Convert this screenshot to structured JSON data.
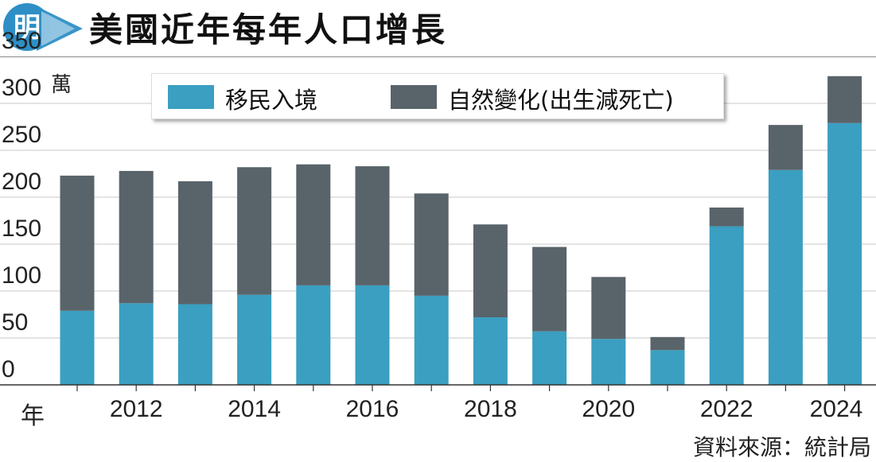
{
  "title": "美國近年每年人口增長",
  "badge": {
    "text": "明"
  },
  "source": "資料來源：統計局",
  "colors": {
    "immigration": "#3a9fc1",
    "natural": "#59646a",
    "badge": "#2e8fc6",
    "grid": "#c9c9c9"
  },
  "chart_data": {
    "type": "bar",
    "stacked": true,
    "ylabel": "萬",
    "xlabel": "年",
    "ylim": [
      0,
      350
    ],
    "yticks": [
      0,
      50,
      100,
      150,
      200,
      250,
      300,
      350
    ],
    "categories": [
      2011,
      2012,
      2013,
      2014,
      2015,
      2016,
      2017,
      2018,
      2019,
      2020,
      2021,
      2022,
      2023,
      2024
    ],
    "xtick_labels": [
      "2012",
      "2014",
      "2016",
      "2018",
      "2020",
      "2022",
      "2024"
    ],
    "series": [
      {
        "name": "移民入境",
        "values": [
          79,
          87,
          86,
          96,
          106,
          106,
          95,
          72,
          57,
          49,
          37,
          169,
          229,
          279
        ]
      },
      {
        "name": "自然變化(出生減死亡)",
        "values": [
          144,
          141,
          131,
          136,
          129,
          127,
          109,
          99,
          90,
          66,
          14,
          20,
          48,
          50
        ]
      }
    ],
    "grid": true,
    "legend": "top"
  }
}
